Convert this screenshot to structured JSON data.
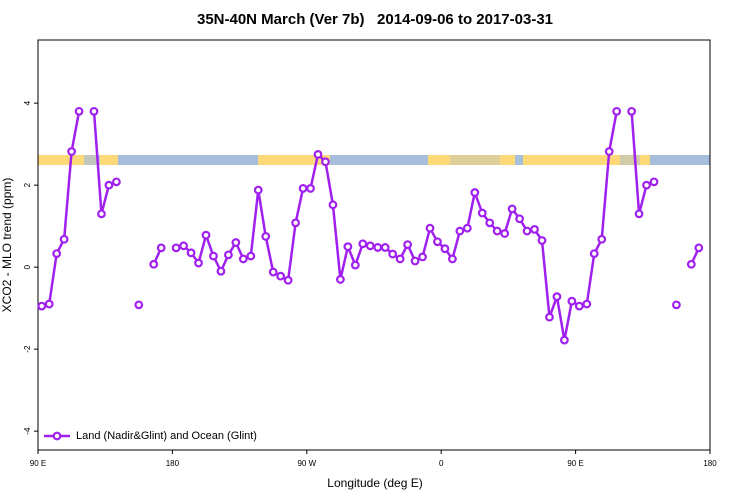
{
  "chart_data": {
    "type": "line",
    "title": "35N-40N March (Ver 7b)   2014-09-06 to 2017-03-31",
    "xlabel": "Longitude (deg E)",
    "ylabel": "XCO2 - MLO trend (ppm)",
    "xlim": [
      90,
      540
    ],
    "ylim": [
      -4.46,
      5.54
    ],
    "xticks": [
      {
        "value": 90,
        "label": "90 E"
      },
      180,
      {
        "value": 270,
        "label": "90 W"
      },
      {
        "value": 360,
        "label": "0"
      },
      {
        "value": 450,
        "label": "90 E"
      },
      {
        "value": 540,
        "label": "180"
      }
    ],
    "yticks": [
      -4,
      -2,
      0,
      2,
      4
    ],
    "legend": "bottom-left",
    "x": [
      92.5,
      97.5,
      102.5,
      107.5,
      112.5,
      117.5,
      122.5,
      127.5,
      132.5,
      137.5,
      142.5,
      147.5,
      152.5,
      157.5,
      162.5,
      167.5,
      172.5,
      177.5,
      182.5,
      187.5,
      192.5,
      197.5,
      202.5,
      207.5,
      212.5,
      217.5,
      222.5,
      227.5,
      232.5,
      237.5,
      242.5,
      247.5,
      252.5,
      257.5,
      262.5,
      267.5,
      272.5,
      277.5,
      282.5,
      287.5,
      292.5,
      297.5,
      302.5,
      307.5,
      312.5,
      317.5,
      322.5,
      327.5,
      332.5,
      337.5,
      342.5,
      347.5,
      352.5,
      357.5,
      362.5,
      367.5,
      372.5,
      377.5,
      382.5,
      387.5,
      392.5,
      397.5,
      402.5,
      407.5,
      412.5,
      417.5,
      422.5,
      427.5,
      432.5,
      437.5,
      442.5,
      447.5,
      452.5,
      457.5,
      462.5,
      467.5,
      472.5,
      477.5,
      482.5,
      487.5,
      492.5,
      497.5,
      502.5,
      507.5,
      512.5,
      517.5,
      522.5,
      527.5,
      532.5,
      537.5
    ],
    "series": [
      {
        "name": "Land (Nadir&Glint) and Ocean (Glint)",
        "color": "#a020f0",
        "values": [
          -0.95,
          -0.9,
          0.33,
          0.68,
          2.82,
          3.8,
          null,
          3.8,
          1.3,
          2.0,
          2.08,
          null,
          null,
          -0.92,
          null,
          0.07,
          0.47,
          null,
          0.47,
          0.52,
          0.35,
          0.1,
          0.78,
          0.27,
          -0.1,
          0.3,
          0.6,
          0.2,
          0.27,
          1.88,
          0.75,
          -0.12,
          -0.22,
          -0.32,
          1.08,
          1.92,
          1.92,
          2.75,
          2.57,
          1.52,
          -0.3,
          0.5,
          0.05,
          0.57,
          0.52,
          0.48,
          0.48,
          0.32,
          0.2,
          0.55,
          0.15,
          0.25,
          0.95,
          0.62,
          0.45,
          0.2,
          0.88,
          0.95,
          1.82,
          1.32,
          1.08,
          0.88,
          0.82,
          1.42,
          1.18,
          0.88,
          0.92,
          0.65,
          -1.22,
          -0.72,
          -1.78,
          -0.83,
          -0.95,
          -0.9,
          0.33,
          0.68,
          2.82,
          3.8,
          null,
          3.8,
          1.3,
          2.0,
          2.08,
          null,
          null,
          -0.92,
          null,
          0.07,
          0.47,
          null
        ]
      }
    ]
  }
}
